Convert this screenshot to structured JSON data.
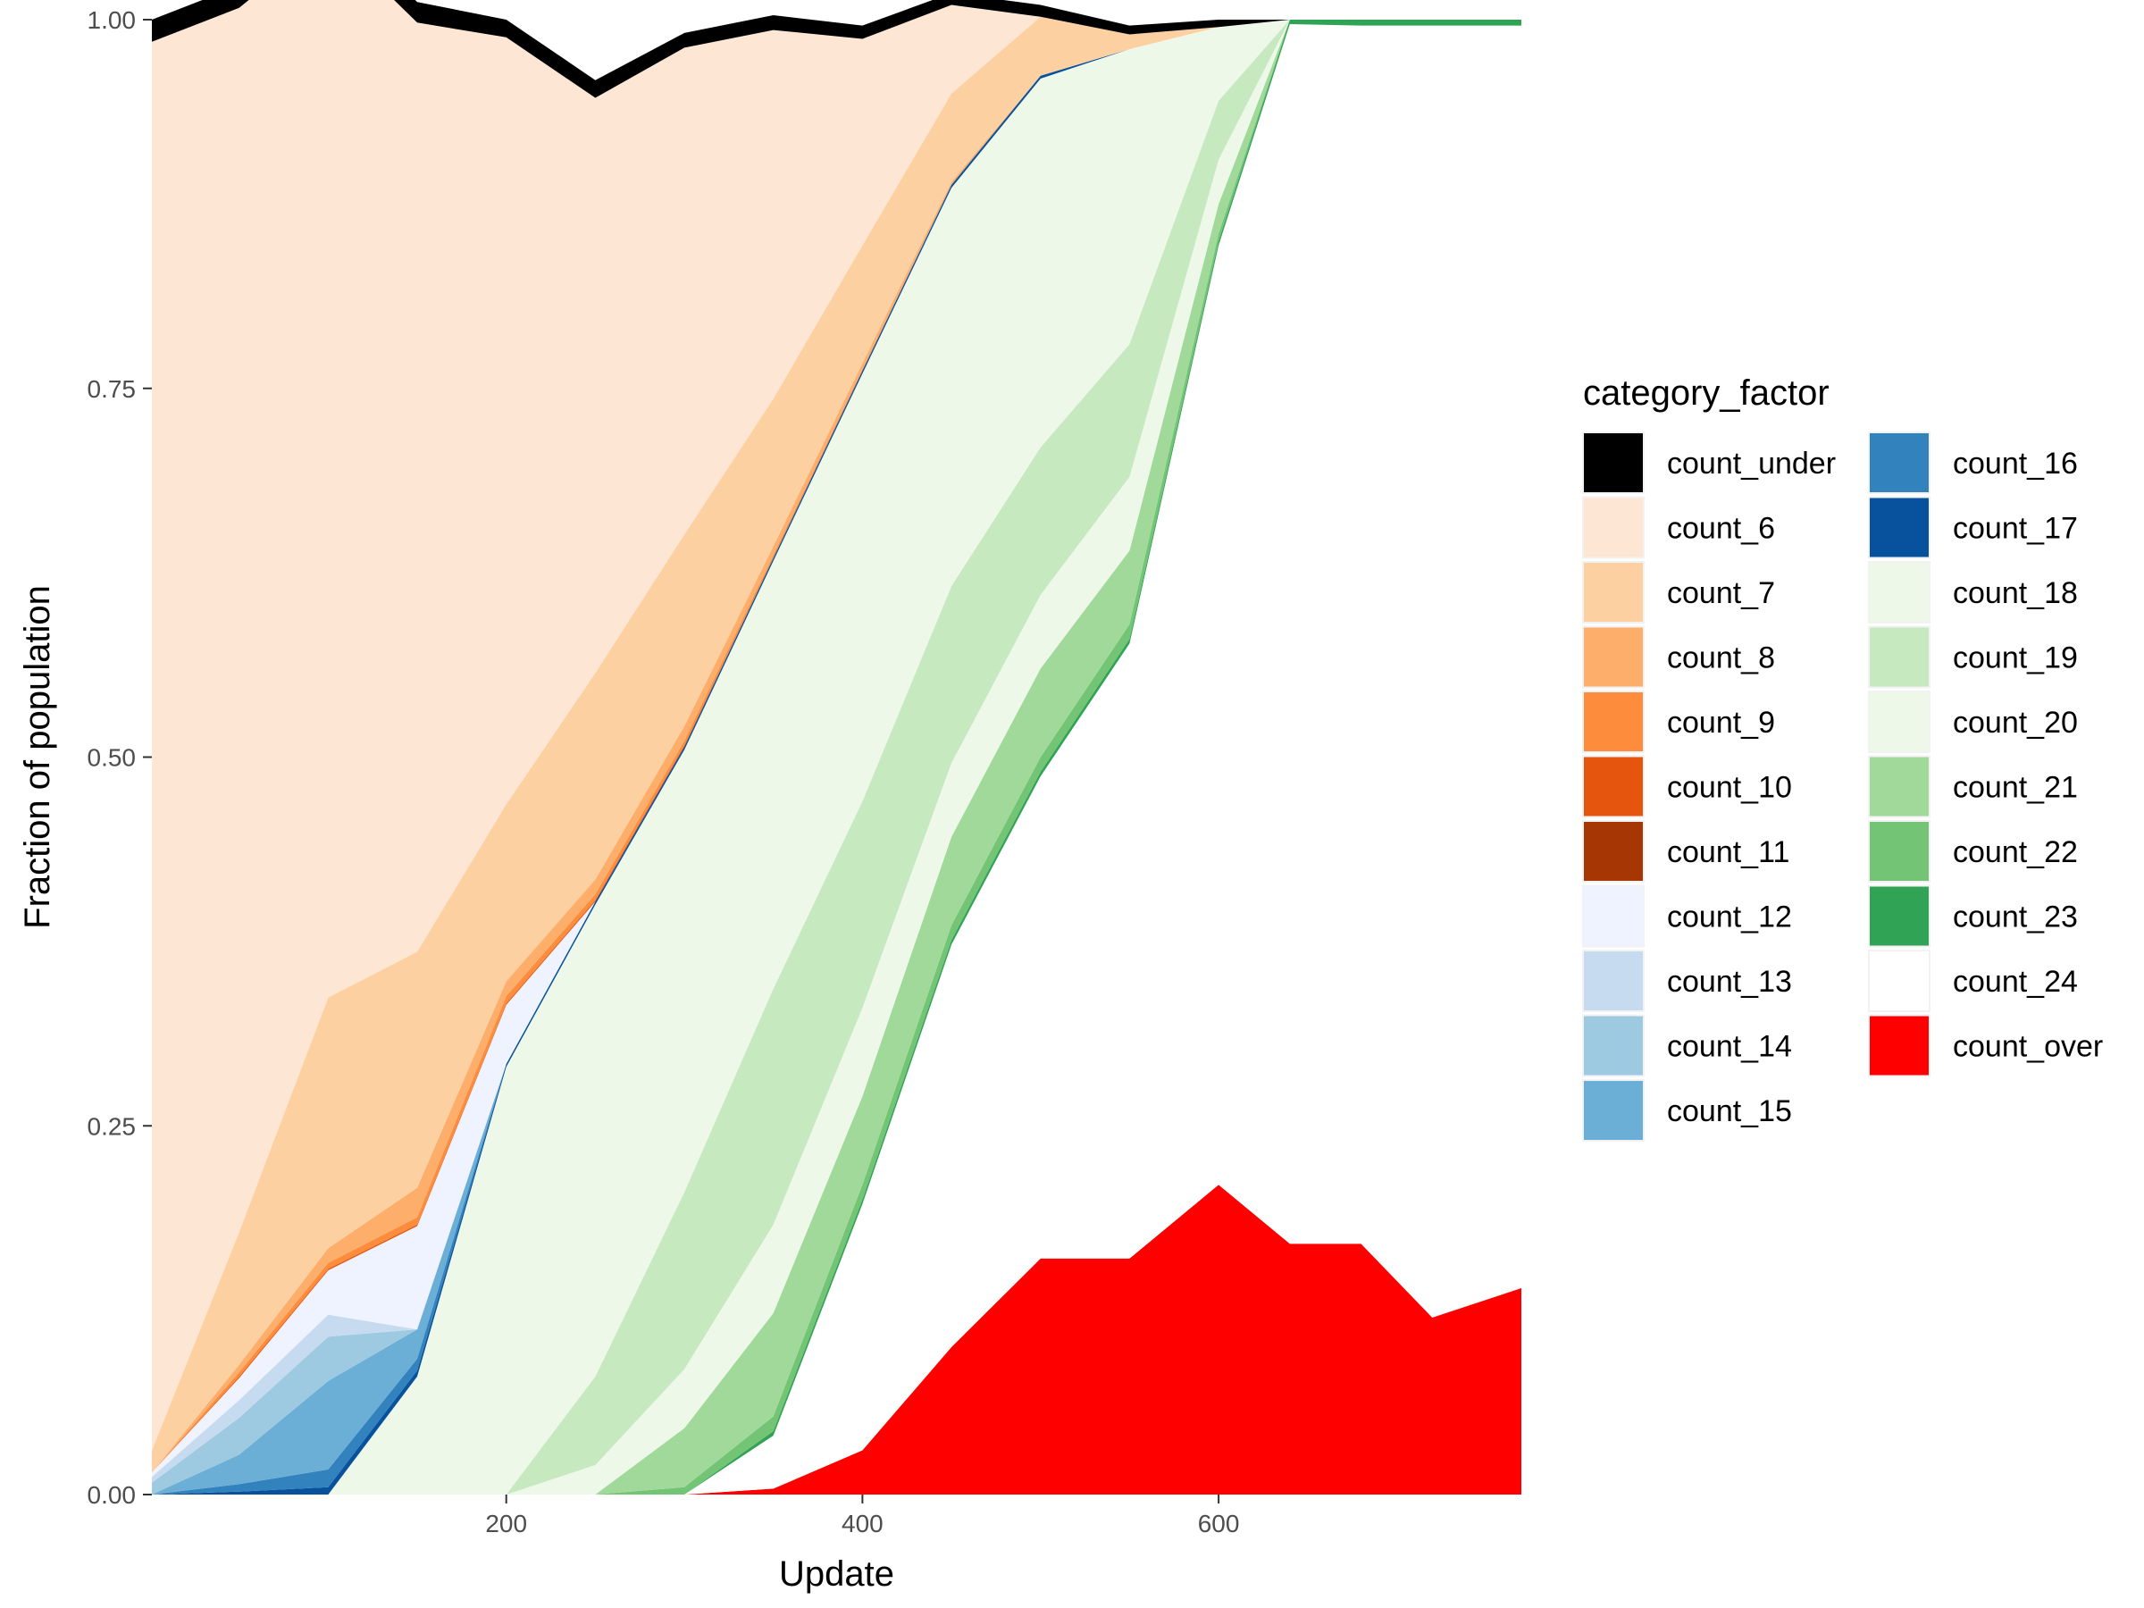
{
  "chart_data": {
    "type": "area",
    "stacked": true,
    "xlabel": "Update",
    "ylabel": "Fraction of population",
    "xlim": [
      1,
      770
    ],
    "ylim": [
      0,
      1
    ],
    "x_ticks": [
      200,
      400,
      600
    ],
    "x_tick_labels": [
      "200",
      "400",
      "600"
    ],
    "y_ticks": [
      0,
      0.25,
      0.5,
      0.75,
      1
    ],
    "y_tick_labels": [
      "0.00",
      "0.25",
      "0.50",
      "0.75",
      "1.00"
    ],
    "grid": false,
    "legend": {
      "title": "category_factor",
      "placement": "right",
      "columns": 2
    },
    "x": [
      1,
      50,
      100,
      150,
      200,
      250,
      300,
      350,
      400,
      450,
      500,
      550,
      600,
      640,
      680,
      720,
      770
    ],
    "series": [
      {
        "name": "count_under",
        "color": "#000000",
        "values": [
          0.015,
          0.015,
          0.014,
          0.014,
          0.012,
          0.012,
          0.01,
          0.01,
          0.009,
          0.008,
          0.008,
          0.006,
          0.005,
          0.0,
          0.0,
          0.0,
          0.0
        ]
      },
      {
        "name": "count_6",
        "color": "#fee6d5",
        "values": [
          0.955,
          0.83,
          0.72,
          0.63,
          0.52,
          0.39,
          0.33,
          0.25,
          0.14,
          0.06,
          0.0,
          0.0,
          0.0,
          0.0,
          0.0,
          0.0,
          0.0
        ]
      },
      {
        "name": "count_7",
        "color": "#fdd0a2",
        "values": [
          0.015,
          0.09,
          0.17,
          0.16,
          0.12,
          0.14,
          0.13,
          0.1,
          0.08,
          0.06,
          0.04,
          0.01,
          0.0,
          0.0,
          0.0,
          0.0,
          0.0
        ]
      },
      {
        "name": "count_8",
        "color": "#fdae6b",
        "values": [
          0.0,
          0.005,
          0.01,
          0.02,
          0.01,
          0.01,
          0.01,
          0.006,
          0.004,
          0.002,
          0.0,
          0.0,
          0.0,
          0.0,
          0.0,
          0.0,
          0.0
        ]
      },
      {
        "name": "count_9",
        "color": "#fd8d3c",
        "values": [
          0.0,
          0.003,
          0.004,
          0.005,
          0.005,
          0.004,
          0.003,
          0.002,
          0.001,
          0.0,
          0.0,
          0.0,
          0.0,
          0.0,
          0.0,
          0.0,
          0.0
        ]
      },
      {
        "name": "count_10",
        "color": "#e6550d",
        "values": [
          0.0,
          0.001,
          0.001,
          0.001,
          0.001,
          0.001,
          0.001,
          0.0,
          0.0,
          0.0,
          0.0,
          0.0,
          0.0,
          0.0,
          0.0,
          0.0,
          0.0
        ]
      },
      {
        "name": "count_11",
        "color": "#a63603",
        "values": [
          0.0,
          0.0,
          0.0,
          0.0,
          0.0,
          0.0,
          0.0,
          0.0,
          0.0,
          0.0,
          0.0,
          0.0,
          0.0,
          0.0,
          0.0,
          0.0,
          0.0
        ]
      },
      {
        "name": "count_12",
        "color": "#eff3ff",
        "values": [
          0.003,
          0.015,
          0.03,
          0.07,
          0.04,
          0.0,
          0.0,
          0.0,
          0.0,
          0.0,
          0.0,
          0.0,
          0.0,
          0.0,
          0.0,
          0.0,
          0.0
        ]
      },
      {
        "name": "count_13",
        "color": "#c6dbef",
        "values": [
          0.004,
          0.012,
          0.015,
          0.0,
          0.0,
          0.0,
          0.0,
          0.0,
          0.0,
          0.0,
          0.0,
          0.0,
          0.0,
          0.0,
          0.0,
          0.0,
          0.0
        ]
      },
      {
        "name": "count_14",
        "color": "#9ecae1",
        "values": [
          0.008,
          0.025,
          0.03,
          0.0,
          0.0,
          0.0,
          0.0,
          0.0,
          0.0,
          0.0,
          0.0,
          0.0,
          0.0,
          0.0,
          0.0,
          0.0,
          0.0
        ]
      },
      {
        "name": "count_15",
        "color": "#6baed6",
        "values": [
          0.0,
          0.02,
          0.06,
          0.02,
          0.0,
          0.0,
          0.0,
          0.0,
          0.0,
          0.0,
          0.0,
          0.0,
          0.0,
          0.0,
          0.0,
          0.0,
          0.0
        ]
      },
      {
        "name": "count_16",
        "color": "#3182bd",
        "values": [
          0.0,
          0.005,
          0.012,
          0.008,
          0.0,
          0.0,
          0.0,
          0.0,
          0.0,
          0.0,
          0.0,
          0.0,
          0.0,
          0.0,
          0.0,
          0.0,
          0.0
        ]
      },
      {
        "name": "count_17",
        "color": "#08519c",
        "values": [
          0.0,
          0.002,
          0.005,
          0.004,
          0.002,
          0.002,
          0.002,
          0.002,
          0.002,
          0.002,
          0.002,
          0.0,
          0.0,
          0.0,
          0.0,
          0.0,
          0.0
        ]
      },
      {
        "name": "count_18",
        "color": "#edf8e9",
        "values": [
          0.0,
          0.0,
          0.0,
          0.08,
          0.29,
          0.32,
          0.3,
          0.29,
          0.29,
          0.27,
          0.25,
          0.2,
          0.05,
          0.0,
          0.0,
          0.0,
          0.0
        ]
      },
      {
        "name": "count_19",
        "color": "#c7e9c0",
        "values": [
          0.0,
          0.0,
          0.0,
          0.0,
          0.0,
          0.06,
          0.12,
          0.16,
          0.14,
          0.12,
          0.1,
          0.09,
          0.04,
          0.0,
          0.0,
          0.0,
          0.0
        ]
      },
      {
        "name": "count_20",
        "color": "#edf8e9",
        "values": [
          0.0,
          0.0,
          0.0,
          0.0,
          0.0,
          0.02,
          0.04,
          0.06,
          0.06,
          0.05,
          0.05,
          0.05,
          0.03,
          0.0,
          0.0,
          0.0,
          0.0
        ]
      },
      {
        "name": "count_21",
        "color": "#a1d99b",
        "values": [
          0.0,
          0.0,
          0.0,
          0.0,
          0.0,
          0.0,
          0.04,
          0.07,
          0.06,
          0.06,
          0.06,
          0.05,
          0.02,
          0.0,
          0.0,
          0.0,
          0.0
        ]
      },
      {
        "name": "count_22",
        "color": "#74c476",
        "values": [
          0.0,
          0.0,
          0.0,
          0.0,
          0.0,
          0.0,
          0.005,
          0.01,
          0.01,
          0.01,
          0.01,
          0.01,
          0.005,
          0.0,
          0.0,
          0.0,
          0.0
        ]
      },
      {
        "name": "count_23",
        "color": "#31a354",
        "values": [
          0.0,
          0.0,
          0.0,
          0.0,
          0.0,
          0.0,
          0.0,
          0.003,
          0.003,
          0.003,
          0.003,
          0.003,
          0.003,
          0.003,
          0.004,
          0.004,
          0.004
        ]
      },
      {
        "name": "count_24",
        "color": "#ffffff",
        "values": [
          0.0,
          0.0,
          0.0,
          0.0,
          0.0,
          0.0,
          0.0,
          0.036,
          0.167,
          0.273,
          0.327,
          0.417,
          0.637,
          0.827,
          0.826,
          0.876,
          0.856
        ]
      },
      {
        "name": "count_over",
        "color": "#ff0000",
        "values": [
          0.0,
          0.0,
          0.0,
          0.0,
          0.0,
          0.0,
          0.0,
          0.004,
          0.03,
          0.1,
          0.16,
          0.16,
          0.21,
          0.17,
          0.17,
          0.12,
          0.14
        ]
      }
    ]
  }
}
